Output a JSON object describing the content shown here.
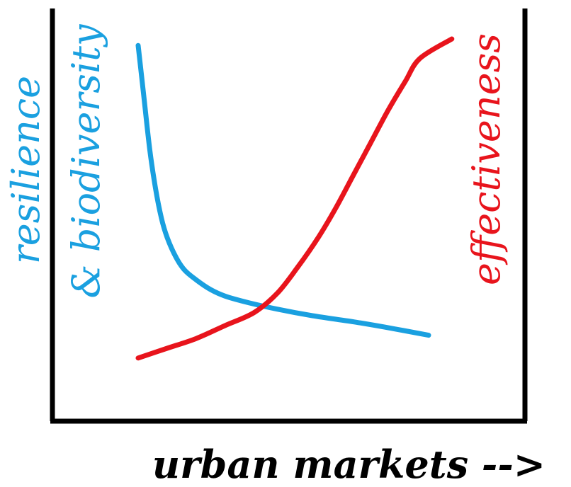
{
  "chart_data": {
    "type": "line",
    "xlabel": "urban markets -->",
    "ylabel_left": [
      "resilience",
      "& biodiversity"
    ],
    "ylabel_right": "effectiveness",
    "grid": false,
    "legend": "none",
    "x_ticks_shown": false,
    "y_ticks_shown": false,
    "xlim": [
      0,
      1
    ],
    "ylim": [
      0,
      1
    ],
    "series": [
      {
        "name": "resilience & biodiversity",
        "axis": "left",
        "color": "#1aa0e0",
        "x": [
          0.0,
          0.02,
          0.04,
          0.06,
          0.08,
          0.1,
          0.13,
          0.16,
          0.2,
          0.25,
          0.3,
          0.38,
          0.48,
          0.6,
          0.75,
          0.88,
          1.0
        ],
        "y": [
          0.98,
          0.82,
          0.66,
          0.54,
          0.45,
          0.39,
          0.33,
          0.29,
          0.26,
          0.23,
          0.21,
          0.19,
          0.17,
          0.15,
          0.13,
          0.11,
          0.09
        ]
      },
      {
        "name": "effectiveness",
        "axis": "right",
        "color": "#e8141c",
        "x": [
          0.0,
          0.1,
          0.2,
          0.3,
          0.4,
          0.48,
          0.55,
          0.62,
          0.68,
          0.74,
          0.8,
          0.86,
          0.92,
          0.97,
          1.08
        ],
        "y": [
          0.02,
          0.05,
          0.08,
          0.12,
          0.16,
          0.22,
          0.3,
          0.39,
          0.48,
          0.58,
          0.68,
          0.78,
          0.87,
          0.94,
          1.0
        ]
      }
    ]
  }
}
